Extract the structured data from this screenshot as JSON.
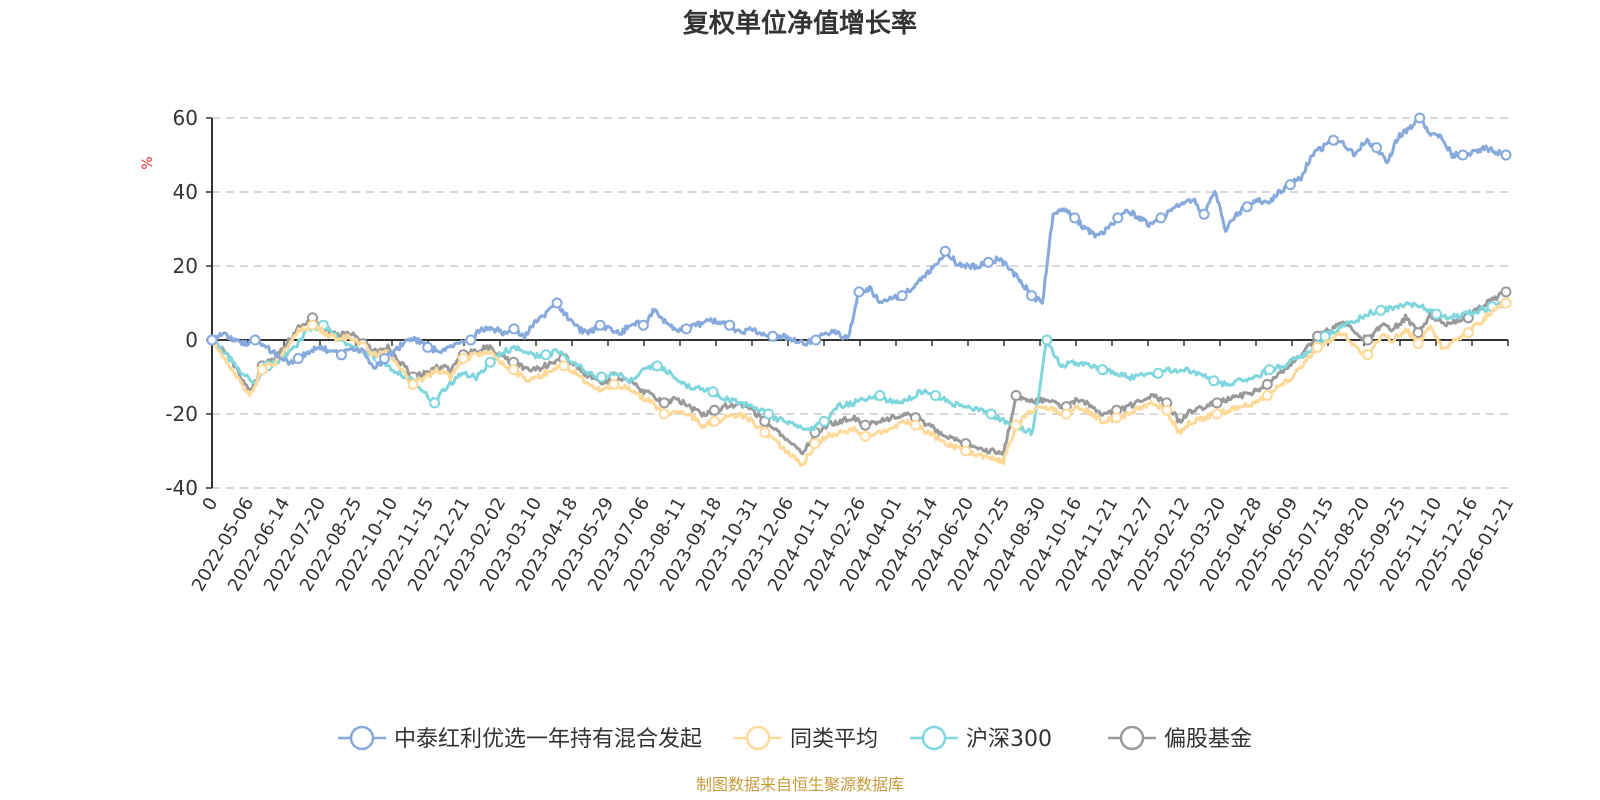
{
  "chart_data": {
    "type": "line",
    "title": "复权单位净值增长率",
    "xlabel": "",
    "ylabel": "%",
    "ylim": [
      -40,
      60
    ],
    "yticks": [
      60,
      40,
      20,
      0,
      -20,
      -40
    ],
    "grid": true,
    "legend_position": "bottom",
    "x_tick_labels": [
      "0",
      "2022-05-06",
      "2022-06-14",
      "2022-07-20",
      "2022-08-25",
      "2022-10-10",
      "2022-11-15",
      "2022-12-21",
      "2023-02-02",
      "2023-03-10",
      "2023-04-18",
      "2023-05-29",
      "2023-07-06",
      "2023-08-11",
      "2023-09-18",
      "2023-10-31",
      "2023-12-06",
      "2024-01-11",
      "2024-02-26",
      "2024-04-01",
      "2024-05-14",
      "2024-06-20",
      "2024-07-25",
      "2024-08-30",
      "2024-10-16",
      "2024-11-21",
      "2024-12-27",
      "2025-02-12",
      "2025-03-20",
      "2025-04-28",
      "2025-06-09",
      "2025-07-15",
      "2025-08-20",
      "2025-09-25",
      "2025-11-10",
      "2025-12-16",
      "2026-01-21"
    ],
    "series": [
      {
        "name": "中泰红利优选一年持有混合发起",
        "color": "#87a9db",
        "values": [
          0,
          2,
          0,
          -1,
          0,
          -2,
          -4,
          -6,
          -5,
          -3,
          -2,
          -3,
          -4,
          -2,
          -3,
          -8,
          -5,
          -3,
          0,
          0,
          -2,
          -3,
          -2,
          -1,
          0,
          3,
          3,
          2,
          3,
          1,
          5,
          7,
          10,
          6,
          3,
          2,
          4,
          3,
          2,
          5,
          4,
          8,
          5,
          3,
          3,
          4,
          5,
          5,
          4,
          2,
          3,
          2,
          1,
          1,
          0,
          -1,
          0,
          2,
          2,
          0,
          13,
          14,
          10,
          11,
          12,
          14,
          17,
          20,
          24,
          21,
          20,
          20,
          21,
          22,
          19,
          16,
          12,
          10,
          34,
          35,
          33,
          30,
          28,
          30,
          33,
          35,
          33,
          31,
          33,
          35,
          37,
          38,
          34,
          40,
          30,
          34,
          36,
          38,
          37,
          40,
          42,
          44,
          50,
          52,
          54,
          53,
          50,
          54,
          52,
          48,
          55,
          57,
          60,
          56,
          55,
          50,
          50,
          51,
          52,
          51,
          50
        ]
      },
      {
        "name": "同类平均",
        "color": "#ffd99a",
        "values": [
          0,
          -5,
          -10,
          -15,
          -8,
          -6,
          -2,
          3,
          4,
          2,
          0,
          1,
          -2,
          -4,
          -3,
          -8,
          -12,
          -10,
          -8,
          -10,
          -5,
          -4,
          -3,
          -6,
          -8,
          -11,
          -10,
          -8,
          -7,
          -9,
          -12,
          -14,
          -12,
          -13,
          -15,
          -17,
          -20,
          -19,
          -20,
          -23,
          -22,
          -21,
          -20,
          -22,
          -25,
          -28,
          -31,
          -34,
          -28,
          -26,
          -25,
          -24,
          -26,
          -25,
          -24,
          -22,
          -23,
          -25,
          -27,
          -29,
          -30,
          -31,
          -32,
          -33,
          -23,
          -20,
          -18,
          -19,
          -20,
          -18,
          -20,
          -22,
          -21,
          -20,
          -18,
          -17,
          -19,
          -25,
          -22,
          -21,
          -20,
          -19,
          -18,
          -17,
          -15,
          -12,
          -10,
          -6,
          -2,
          0,
          2,
          -2,
          -4,
          1,
          0,
          3,
          -1,
          4,
          -3,
          0,
          2,
          5,
          8,
          10
        ]
      },
      {
        "name": "沪深300",
        "color": "#7fd6dc",
        "values": [
          0,
          -4,
          -8,
          -12,
          -7,
          -5,
          -2,
          3,
          4,
          1,
          -2,
          -3,
          -5,
          -8,
          -10,
          -13,
          -17,
          -12,
          -9,
          -10,
          -6,
          -3,
          -2,
          -4,
          -4,
          -3,
          -6,
          -9,
          -10,
          -9,
          -11,
          -8,
          -7,
          -9,
          -12,
          -13,
          -14,
          -16,
          -17,
          -18,
          -20,
          -22,
          -23,
          -24,
          -22,
          -18,
          -17,
          -16,
          -15,
          -17,
          -16,
          -14,
          -15,
          -17,
          -18,
          -19,
          -20,
          -22,
          -24,
          -25,
          0,
          -7,
          -6,
          -7,
          -8,
          -9,
          -10,
          -9,
          -9,
          -8,
          -8,
          -9,
          -11,
          -12,
          -11,
          -10,
          -8,
          -7,
          -5,
          -3,
          1,
          3,
          5,
          7,
          8,
          9,
          10,
          9,
          7,
          6,
          7,
          8,
          9,
          10
        ]
      },
      {
        "name": "偏股基金",
        "color": "#999999",
        "values": [
          0,
          -3,
          -8,
          -14,
          -7,
          -5,
          -1,
          4,
          6,
          3,
          1,
          2,
          -1,
          -3,
          -2,
          -6,
          -10,
          -9,
          -7,
          -8,
          -4,
          -3,
          -2,
          -4,
          -6,
          -8,
          -8,
          -6,
          -5,
          -7,
          -10,
          -12,
          -10,
          -11,
          -13,
          -15,
          -17,
          -16,
          -18,
          -20,
          -19,
          -18,
          -17,
          -19,
          -22,
          -25,
          -28,
          -31,
          -25,
          -23,
          -22,
          -21,
          -23,
          -22,
          -21,
          -20,
          -21,
          -23,
          -25,
          -27,
          -28,
          -29,
          -30,
          -31,
          -15,
          -17,
          -16,
          -17,
          -18,
          -16,
          -18,
          -20,
          -19,
          -18,
          -16,
          -15,
          -17,
          -22,
          -19,
          -18,
          -17,
          -16,
          -15,
          -14,
          -12,
          -9,
          -6,
          -3,
          1,
          3,
          5,
          2,
          0,
          4,
          3,
          6,
          2,
          7,
          4,
          5,
          6,
          9,
          11,
          13
        ]
      }
    ]
  },
  "legend": [
    "中泰红利优选一年持有混合发起",
    "同类平均",
    "沪深300",
    "偏股基金"
  ],
  "source": "制图数据来自恒生聚源数据库",
  "source_color": "#c89b3c",
  "ylabel_color": "#e03030"
}
